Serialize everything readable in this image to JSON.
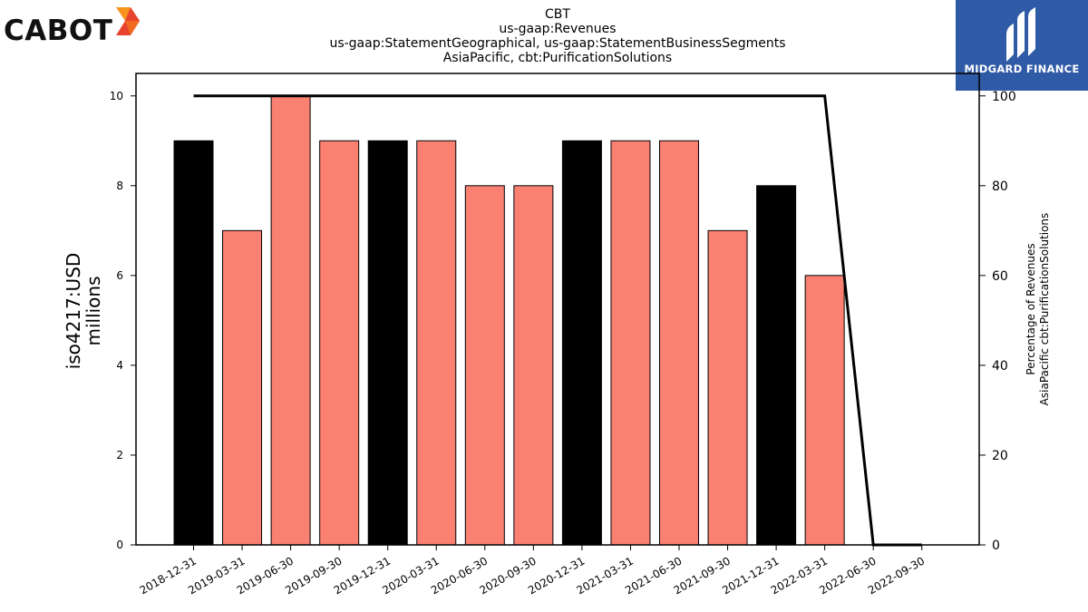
{
  "logos": {
    "left": {
      "text": "CABOT",
      "colors": [
        "#f7941d",
        "#e8432e"
      ]
    },
    "right": {
      "text": "MIDGARD FINANCE",
      "background": "#2f5aa6"
    }
  },
  "chart_data": {
    "type": "bar",
    "title_lines": [
      "CBT",
      "us-gaap:Revenues",
      "us-gaap:StatementGeographical, us-gaap:StatementBusinessSegments",
      "AsiaPacific, cbt:PurificationSolutions"
    ],
    "ylabel_lines": [
      "iso4217:USD",
      "millions"
    ],
    "y2label_lines": [
      "Percentage of Revenues",
      "AsiaPacific cbt:PurificationSolutions"
    ],
    "categories": [
      "2018-12-31",
      "2019-03-31",
      "2019-06-30",
      "2019-09-30",
      "2019-12-31",
      "2020-03-31",
      "2020-06-30",
      "2020-09-30",
      "2020-12-31",
      "2021-03-31",
      "2021-06-30",
      "2021-09-30",
      "2021-12-31",
      "2022-03-31",
      "2022-06-30",
      "2022-09-30"
    ],
    "values": [
      9,
      7,
      10,
      9,
      9,
      9,
      8,
      8,
      9,
      9,
      9,
      7,
      8,
      6,
      null,
      null
    ],
    "bar_colors": [
      "#000000",
      "#fa8072",
      "#fa8072",
      "#fa8072",
      "#000000",
      "#fa8072",
      "#fa8072",
      "#fa8072",
      "#000000",
      "#fa8072",
      "#fa8072",
      "#fa8072",
      "#000000",
      "#fa8072",
      null,
      null
    ],
    "line_values": [
      100,
      100,
      100,
      100,
      100,
      100,
      100,
      100,
      100,
      100,
      100,
      100,
      100,
      100,
      0,
      0
    ],
    "ylim": [
      0,
      10.5
    ],
    "y2lim": [
      0,
      105
    ],
    "yticks": [
      0,
      2,
      4,
      6,
      8,
      10
    ],
    "y2ticks": [
      0,
      20,
      40,
      60,
      80,
      100
    ],
    "grid": false,
    "legend": "none"
  }
}
